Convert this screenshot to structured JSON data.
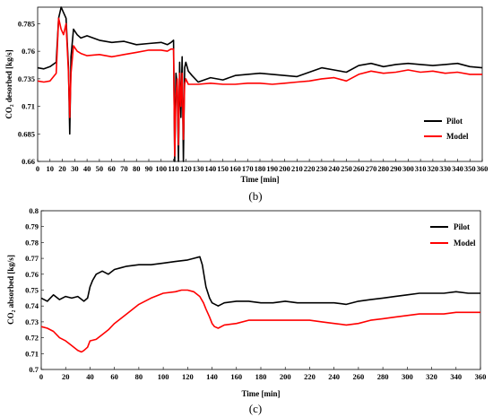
{
  "chart_data": [
    {
      "type": "line",
      "panel_label": "(b)",
      "xlabel": "Time [min]",
      "ylabel": "CO₂ desorbed [kg/s]",
      "xlim": [
        0,
        360
      ],
      "ylim": [
        0.66,
        0.8
      ],
      "x_ticks": [
        0,
        10,
        20,
        30,
        40,
        50,
        60,
        70,
        80,
        90,
        100,
        110,
        120,
        130,
        140,
        150,
        160,
        170,
        180,
        190,
        200,
        210,
        220,
        230,
        240,
        250,
        260,
        270,
        280,
        290,
        300,
        310,
        320,
        330,
        340,
        350,
        360
      ],
      "y_ticks": [
        0.66,
        0.685,
        0.71,
        0.735,
        0.76,
        0.785
      ],
      "y_tick_labels": [
        "0.66",
        "0.685",
        "0.71",
        "0.735",
        "0.76",
        "0.785"
      ],
      "legend_position": "lower-right",
      "grid": false,
      "series": [
        {
          "name": "Pilot",
          "color": "#000000",
          "x": [
            0,
            5,
            10,
            15,
            17,
            19,
            21,
            23,
            25,
            26,
            27,
            29,
            32,
            35,
            40,
            50,
            60,
            70,
            80,
            90,
            100,
            105,
            108,
            110,
            111,
            112,
            113,
            114,
            115,
            116,
            117,
            118,
            119,
            120,
            122,
            125,
            130,
            140,
            150,
            160,
            170,
            180,
            190,
            200,
            210,
            220,
            230,
            240,
            250,
            260,
            270,
            280,
            290,
            300,
            310,
            320,
            330,
            340,
            350,
            360
          ],
          "values": [
            0.745,
            0.744,
            0.746,
            0.75,
            0.79,
            0.8,
            0.795,
            0.79,
            0.745,
            0.685,
            0.755,
            0.78,
            0.775,
            0.772,
            0.774,
            0.77,
            0.768,
            0.769,
            0.766,
            0.767,
            0.768,
            0.766,
            0.768,
            0.77,
            0.66,
            0.74,
            0.73,
            0.66,
            0.75,
            0.7,
            0.755,
            0.66,
            0.745,
            0.75,
            0.742,
            0.738,
            0.732,
            0.736,
            0.734,
            0.738,
            0.739,
            0.74,
            0.739,
            0.738,
            0.737,
            0.741,
            0.745,
            0.743,
            0.741,
            0.747,
            0.749,
            0.746,
            0.748,
            0.749,
            0.748,
            0.747,
            0.748,
            0.749,
            0.746,
            0.745
          ]
        },
        {
          "name": "Model",
          "color": "#ff0000",
          "x": [
            0,
            5,
            10,
            15,
            17,
            19,
            21,
            23,
            25,
            26,
            27,
            29,
            32,
            35,
            40,
            50,
            60,
            70,
            80,
            90,
            100,
            105,
            108,
            110,
            111,
            112,
            113,
            114,
            115,
            116,
            117,
            118,
            119,
            120,
            122,
            125,
            130,
            140,
            150,
            160,
            170,
            180,
            190,
            200,
            210,
            220,
            230,
            240,
            250,
            260,
            270,
            280,
            290,
            300,
            310,
            320,
            330,
            340,
            350,
            360
          ],
          "values": [
            0.733,
            0.732,
            0.733,
            0.74,
            0.79,
            0.78,
            0.775,
            0.785,
            0.74,
            0.7,
            0.74,
            0.765,
            0.76,
            0.758,
            0.756,
            0.757,
            0.755,
            0.757,
            0.759,
            0.761,
            0.761,
            0.76,
            0.762,
            0.762,
            0.665,
            0.72,
            0.735,
            0.675,
            0.74,
            0.71,
            0.74,
            0.68,
            0.73,
            0.735,
            0.73,
            0.73,
            0.73,
            0.731,
            0.73,
            0.73,
            0.731,
            0.731,
            0.73,
            0.731,
            0.732,
            0.733,
            0.735,
            0.736,
            0.733,
            0.739,
            0.742,
            0.74,
            0.741,
            0.743,
            0.741,
            0.742,
            0.74,
            0.741,
            0.739,
            0.739
          ]
        }
      ]
    },
    {
      "type": "line",
      "panel_label": "(c)",
      "xlabel": "Time [min]",
      "ylabel": "CO₂ absorbed [kg/s]",
      "xlim": [
        0,
        360
      ],
      "ylim": [
        0.7,
        0.8
      ],
      "x_ticks": [
        0,
        20,
        40,
        60,
        80,
        100,
        120,
        140,
        160,
        180,
        200,
        220,
        240,
        260,
        280,
        300,
        320,
        340,
        360
      ],
      "y_ticks": [
        0.7,
        0.71,
        0.72,
        0.73,
        0.74,
        0.75,
        0.76,
        0.77,
        0.78,
        0.79,
        0.8
      ],
      "y_tick_labels": [
        "0.7",
        "0.71",
        "0.72",
        "0.73",
        "0.74",
        "0.75",
        "0.76",
        "0.77",
        "0.78",
        "0.79",
        "0.8"
      ],
      "legend_position": "top-right",
      "grid": false,
      "series": [
        {
          "name": "Pilot",
          "color": "#000000",
          "x": [
            0,
            5,
            10,
            15,
            20,
            25,
            30,
            35,
            38,
            40,
            42,
            45,
            50,
            55,
            60,
            65,
            70,
            80,
            90,
            100,
            110,
            120,
            125,
            130,
            132,
            135,
            138,
            140,
            145,
            150,
            160,
            170,
            180,
            190,
            200,
            210,
            220,
            230,
            240,
            250,
            260,
            270,
            280,
            290,
            300,
            310,
            320,
            330,
            340,
            350,
            360
          ],
          "values": [
            0.745,
            0.743,
            0.747,
            0.744,
            0.746,
            0.745,
            0.746,
            0.743,
            0.745,
            0.752,
            0.756,
            0.76,
            0.762,
            0.76,
            0.763,
            0.764,
            0.765,
            0.766,
            0.766,
            0.767,
            0.768,
            0.769,
            0.77,
            0.771,
            0.766,
            0.752,
            0.745,
            0.742,
            0.74,
            0.742,
            0.743,
            0.743,
            0.742,
            0.742,
            0.743,
            0.742,
            0.742,
            0.742,
            0.742,
            0.741,
            0.743,
            0.744,
            0.745,
            0.746,
            0.747,
            0.748,
            0.748,
            0.748,
            0.749,
            0.748,
            0.748
          ]
        },
        {
          "name": "Model",
          "color": "#ff0000",
          "x": [
            0,
            5,
            10,
            15,
            20,
            25,
            30,
            33,
            35,
            38,
            40,
            45,
            50,
            55,
            60,
            70,
            80,
            90,
            100,
            110,
            115,
            120,
            125,
            130,
            133,
            135,
            138,
            140,
            142,
            145,
            150,
            160,
            170,
            180,
            190,
            200,
            210,
            220,
            230,
            240,
            250,
            260,
            270,
            280,
            290,
            300,
            310,
            320,
            330,
            340,
            350,
            360
          ],
          "values": [
            0.727,
            0.726,
            0.724,
            0.72,
            0.718,
            0.715,
            0.712,
            0.711,
            0.712,
            0.714,
            0.718,
            0.719,
            0.722,
            0.725,
            0.729,
            0.735,
            0.741,
            0.745,
            0.748,
            0.749,
            0.75,
            0.75,
            0.749,
            0.746,
            0.742,
            0.738,
            0.733,
            0.729,
            0.727,
            0.726,
            0.728,
            0.729,
            0.731,
            0.731,
            0.731,
            0.731,
            0.731,
            0.731,
            0.73,
            0.729,
            0.728,
            0.729,
            0.731,
            0.732,
            0.733,
            0.734,
            0.735,
            0.735,
            0.735,
            0.736,
            0.736,
            0.736
          ]
        }
      ]
    }
  ]
}
